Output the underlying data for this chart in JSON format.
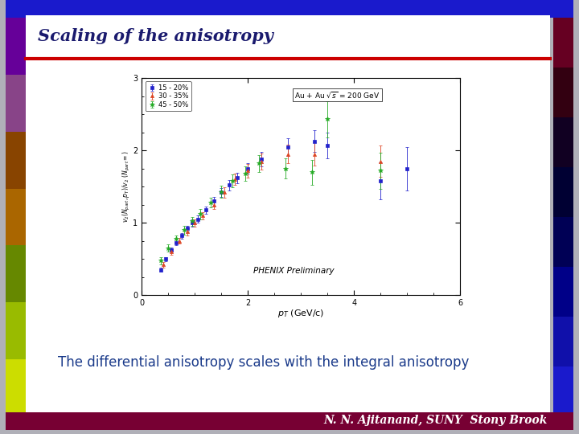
{
  "title": "Scaling of the anisotropy",
  "subtitle_text": "The differential anisotropy scales with the integral anisotropy",
  "footer": "N. N. Ajitanand, SUNY  Stony Brook",
  "plot_annotation": "PHENIX Preliminary",
  "xlabel": "p_T (GeV/c)",
  "xlim": [
    0,
    6
  ],
  "ylim": [
    0,
    3
  ],
  "xticks": [
    0,
    2,
    4,
    6
  ],
  "yticks": [
    0,
    1,
    2,
    3
  ],
  "title_color": "#1a1a6e",
  "subtitle_color": "#1a3a8a",
  "red_line_color": "#cc0000",
  "series": [
    {
      "label": "15 - 20%",
      "color": "#2222cc",
      "marker": "s",
      "marker_size": 3,
      "pt": [
        0.35,
        0.45,
        0.55,
        0.65,
        0.75,
        0.85,
        0.95,
        1.05,
        1.2,
        1.35,
        1.5,
        1.65,
        1.8,
        2.0,
        2.25,
        2.75,
        3.25,
        3.5,
        4.5,
        5.0
      ],
      "y": [
        0.35,
        0.5,
        0.63,
        0.73,
        0.82,
        0.92,
        1.0,
        1.05,
        1.18,
        1.3,
        1.42,
        1.52,
        1.62,
        1.75,
        1.88,
        2.05,
        2.13,
        2.07,
        1.58,
        1.75
      ],
      "yerr": [
        0.03,
        0.03,
        0.03,
        0.04,
        0.04,
        0.04,
        0.05,
        0.05,
        0.05,
        0.06,
        0.06,
        0.07,
        0.07,
        0.07,
        0.1,
        0.12,
        0.15,
        0.18,
        0.25,
        0.3
      ]
    },
    {
      "label": "30 - 35%",
      "color": "#dd4422",
      "marker": "^",
      "marker_size": 3,
      "pt": [
        0.4,
        0.55,
        0.7,
        0.85,
        1.0,
        1.15,
        1.35,
        1.55,
        1.75,
        2.0,
        2.25,
        2.75,
        3.25,
        4.5
      ],
      "y": [
        0.42,
        0.6,
        0.75,
        0.88,
        1.0,
        1.1,
        1.25,
        1.42,
        1.6,
        1.72,
        1.85,
        1.95,
        1.95,
        1.85
      ],
      "yerr": [
        0.04,
        0.04,
        0.04,
        0.05,
        0.05,
        0.05,
        0.06,
        0.07,
        0.08,
        0.09,
        0.11,
        0.13,
        0.16,
        0.22
      ]
    },
    {
      "label": "45 - 50%",
      "color": "#22aa22",
      "marker": "*",
      "marker_size": 4,
      "pt": [
        0.35,
        0.5,
        0.65,
        0.8,
        0.95,
        1.1,
        1.3,
        1.5,
        1.7,
        1.95,
        2.2,
        2.7,
        3.2,
        3.5,
        4.5
      ],
      "y": [
        0.48,
        0.65,
        0.78,
        0.9,
        1.02,
        1.12,
        1.28,
        1.43,
        1.58,
        1.68,
        1.82,
        1.75,
        1.7,
        2.43,
        1.72
      ],
      "yerr": [
        0.05,
        0.05,
        0.05,
        0.06,
        0.06,
        0.07,
        0.07,
        0.08,
        0.09,
        0.1,
        0.12,
        0.14,
        0.17,
        0.25,
        0.25
      ]
    }
  ],
  "border_left_colors": [
    "#ccdd00",
    "#99bb00",
    "#668800",
    "#aa6600",
    "#884400",
    "#884488",
    "#660099"
  ],
  "border_right_top": "#1a1acc",
  "border_right_mid": "#000033",
  "border_right_bot": "#220011",
  "border_bottom_color": "#880044",
  "slide_inner_bg": "#ffffff",
  "outer_bg": "#b0b0b8"
}
